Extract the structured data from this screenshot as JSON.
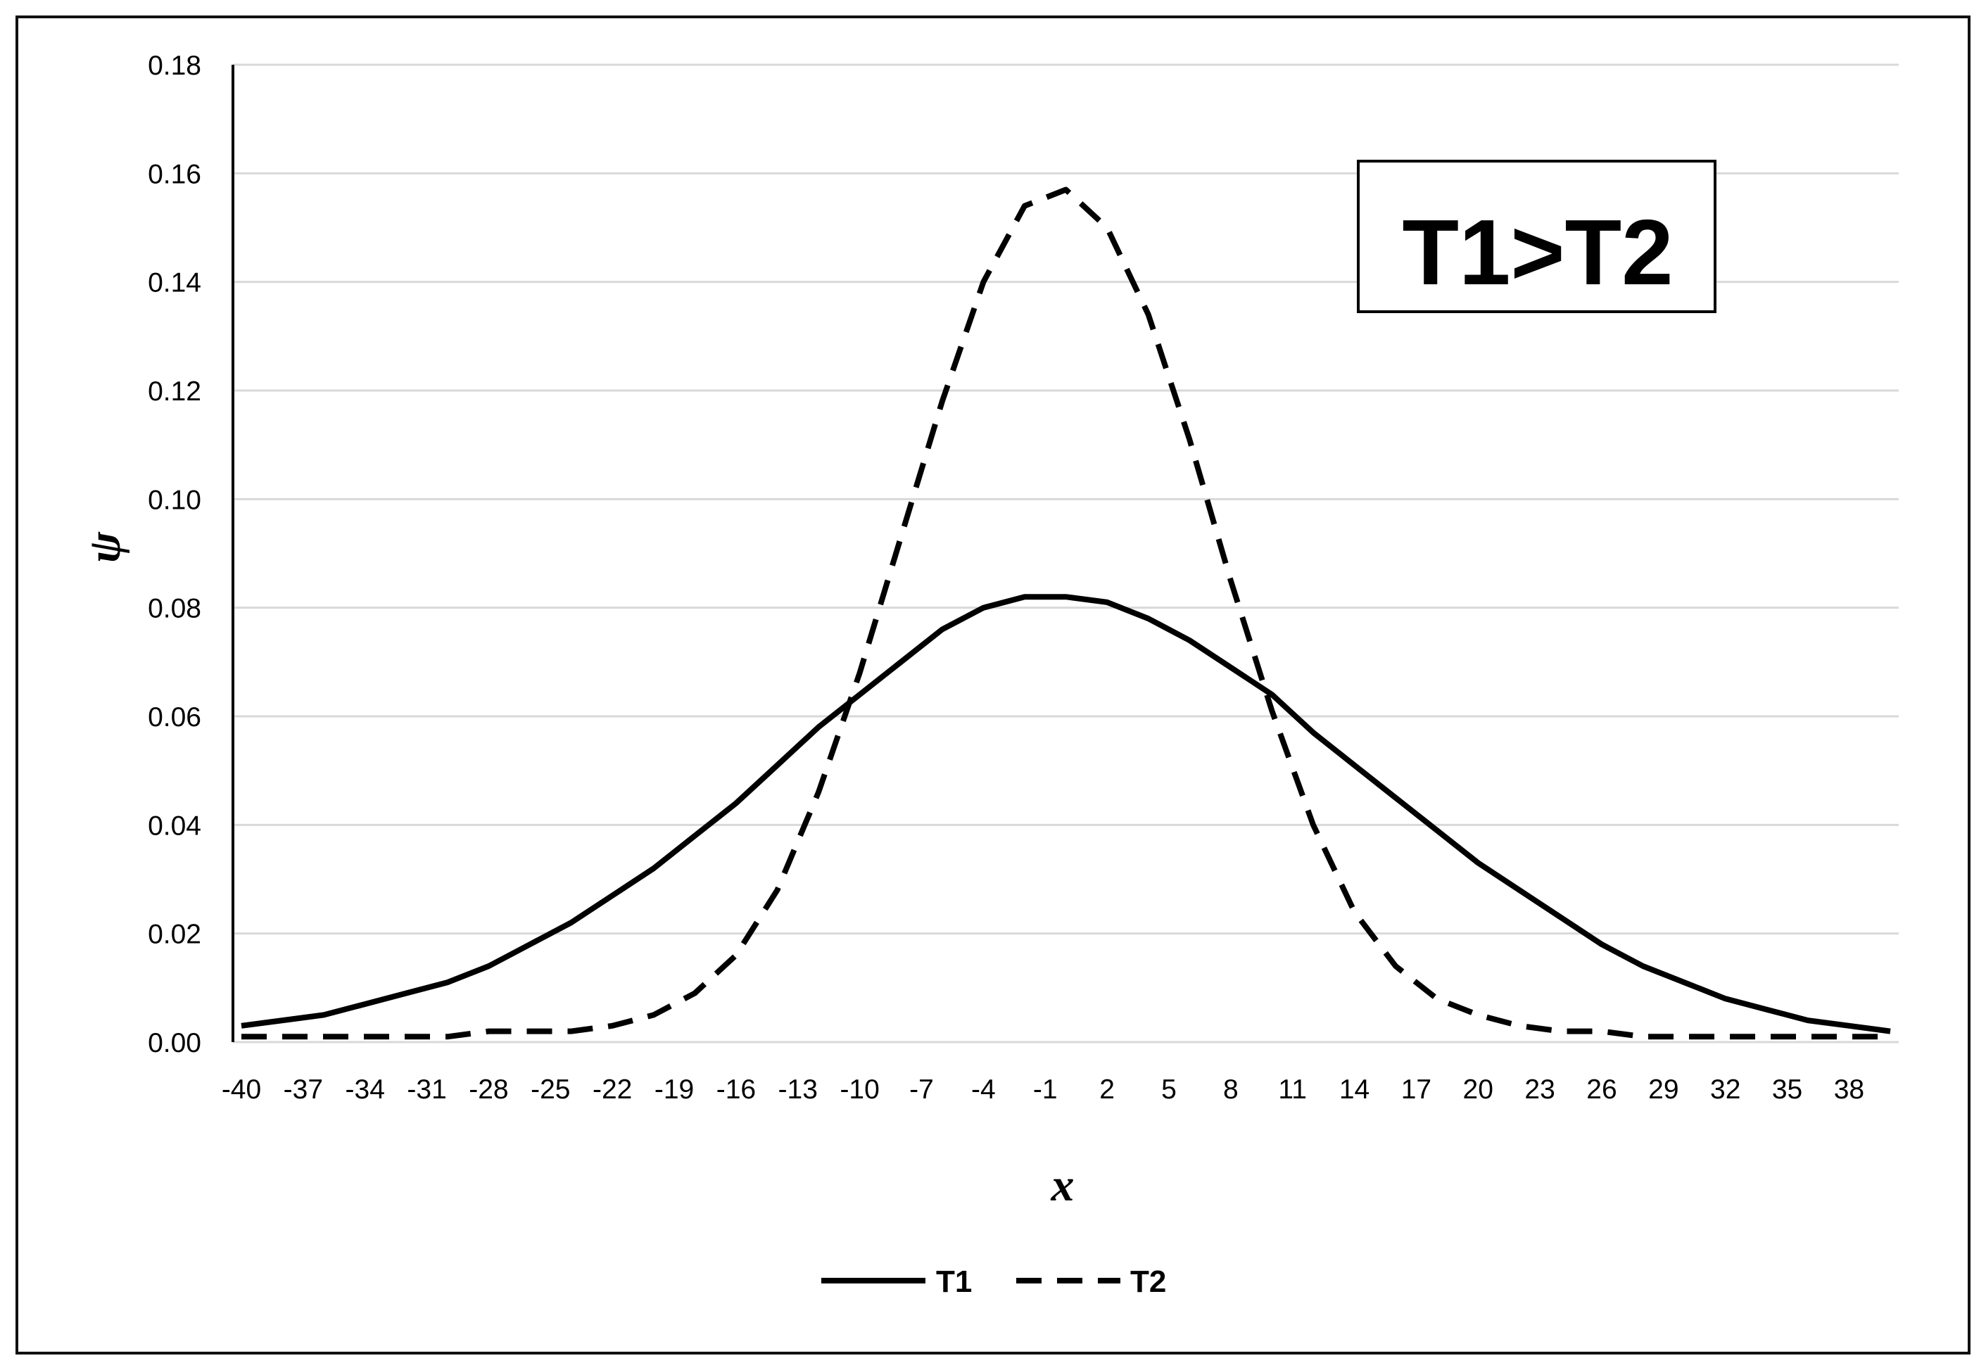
{
  "chart_data": {
    "type": "line",
    "xlabel": "x",
    "ylabel": "ψ",
    "annotation": "T1>T2",
    "x_tick_labels": [
      "-40",
      "-37",
      "-34",
      "-31",
      "-28",
      "-25",
      "-22",
      "-19",
      "-16",
      "-13",
      "-10",
      "-7",
      "-4",
      "-1",
      "2",
      "5",
      "8",
      "11",
      "14",
      "17",
      "20",
      "23",
      "26",
      "29",
      "32",
      "35",
      "38"
    ],
    "y_tick_labels": [
      "0.00",
      "0.02",
      "0.04",
      "0.06",
      "0.08",
      "0.10",
      "0.12",
      "0.14",
      "0.16",
      "0.18"
    ],
    "ylim": [
      0,
      0.18
    ],
    "grid": "horizontal",
    "legend_position": "bottom",
    "series": [
      {
        "name": "T1",
        "style": "solid",
        "color": "#000000",
        "x": [
          -40,
          -38,
          -36,
          -34,
          -32,
          -30,
          -28,
          -26,
          -24,
          -22,
          -20,
          -18,
          -16,
          -14,
          -12,
          -10,
          -8,
          -6,
          -4,
          -2,
          0,
          2,
          4,
          6,
          8,
          10,
          12,
          14,
          16,
          18,
          20,
          22,
          24,
          26,
          28,
          30,
          32,
          34,
          36,
          38,
          40
        ],
        "y": [
          0.003,
          0.004,
          0.005,
          0.007,
          0.009,
          0.011,
          0.014,
          0.018,
          0.022,
          0.027,
          0.032,
          0.038,
          0.044,
          0.051,
          0.058,
          0.064,
          0.07,
          0.076,
          0.08,
          0.082,
          0.082,
          0.081,
          0.078,
          0.074,
          0.069,
          0.064,
          0.057,
          0.051,
          0.045,
          0.039,
          0.033,
          0.028,
          0.023,
          0.018,
          0.014,
          0.011,
          0.008,
          0.006,
          0.004,
          0.003,
          0.002
        ]
      },
      {
        "name": "T2",
        "style": "dashed",
        "color": "#000000",
        "x": [
          -40,
          -38,
          -36,
          -34,
          -32,
          -30,
          -28,
          -26,
          -24,
          -22,
          -20,
          -18,
          -16,
          -14,
          -12,
          -10,
          -8,
          -6,
          -4,
          -2,
          0,
          2,
          4,
          6,
          8,
          10,
          12,
          14,
          16,
          18,
          20,
          22,
          24,
          26,
          28,
          30,
          32,
          34,
          36,
          38,
          40
        ],
        "y": [
          0.001,
          0.001,
          0.001,
          0.001,
          0.001,
          0.001,
          0.002,
          0.002,
          0.002,
          0.003,
          0.005,
          0.009,
          0.016,
          0.028,
          0.046,
          0.068,
          0.093,
          0.118,
          0.14,
          0.154,
          0.157,
          0.15,
          0.134,
          0.111,
          0.085,
          0.061,
          0.04,
          0.024,
          0.014,
          0.008,
          0.005,
          0.003,
          0.002,
          0.002,
          0.001,
          0.001,
          0.001,
          0.001,
          0.001,
          0.001,
          0.001
        ]
      }
    ]
  }
}
